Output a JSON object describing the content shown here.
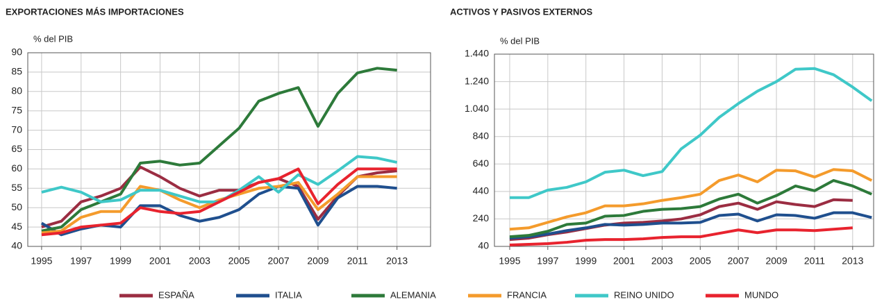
{
  "chart_data": [
    {
      "type": "line",
      "title": "EXPORTACIONES MÁS IMPORTACIONES",
      "y_label": "% del PIB",
      "x": [
        1995,
        1996,
        1997,
        1998,
        1999,
        2000,
        2001,
        2002,
        2003,
        2004,
        2005,
        2006,
        2007,
        2008,
        2009,
        2010,
        2011,
        2012,
        2013
      ],
      "xlim": [
        1994.3,
        2014.7
      ],
      "xticks": [
        1995,
        1997,
        1999,
        2001,
        2003,
        2005,
        2007,
        2009,
        2011,
        2013
      ],
      "ylim": [
        40,
        90
      ],
      "yticks": [
        40,
        45,
        50,
        55,
        60,
        65,
        70,
        75,
        80,
        85,
        90
      ],
      "grid": true,
      "series": [
        {
          "values": [
            45,
            46.5,
            51.5,
            53,
            55,
            60.5,
            58,
            55,
            53,
            54.5,
            54.5,
            56.5,
            57.5,
            55.5,
            47,
            53,
            58,
            59,
            59.5
          ]
        },
        {
          "values": [
            46,
            43,
            44.5,
            45.5,
            45,
            50.5,
            50.5,
            48,
            46.5,
            47.5,
            49.5,
            53.5,
            55.5,
            55,
            45.5,
            52.5,
            55.5,
            55.5,
            55
          ]
        },
        {
          "values": [
            44,
            45,
            49.5,
            51.5,
            53.5,
            61.5,
            62,
            61,
            61.5,
            66,
            70.5,
            77.5,
            79.5,
            81,
            71,
            79.5,
            84.8,
            86,
            85.5
          ]
        },
        {
          "values": [
            43.5,
            44,
            47.5,
            49,
            49,
            55.5,
            54.5,
            52,
            50,
            52,
            53.5,
            55,
            55.5,
            56.5,
            49.5,
            53.5,
            58,
            58,
            58
          ]
        },
        {
          "values": [
            54,
            55.3,
            54,
            51.5,
            52,
            54.5,
            54.5,
            53,
            51.5,
            51.5,
            54.5,
            58,
            54,
            58.5,
            56,
            59.5,
            63.2,
            62.8,
            61.7
          ]
        },
        {
          "values": [
            43,
            43.5,
            45,
            45.5,
            46,
            50,
            49,
            48.5,
            49,
            51.5,
            54,
            56.5,
            57.5,
            60,
            51,
            56,
            60,
            60,
            60
          ]
        }
      ]
    },
    {
      "type": "line",
      "title": "ACTIVOS Y PASIVOS EXTERNOS",
      "y_label": "% del PIB",
      "x": [
        1995,
        1996,
        1997,
        1998,
        1999,
        2000,
        2001,
        2002,
        2003,
        2004,
        2005,
        2006,
        2007,
        2008,
        2009,
        2010,
        2011,
        2012,
        2013,
        2014
      ],
      "xlim": [
        1994.2,
        2014.1
      ],
      "xticks": [
        1995,
        1997,
        1999,
        2001,
        2003,
        2005,
        2007,
        2009,
        2011,
        2013
      ],
      "ylim": [
        40,
        1440
      ],
      "yticks": [
        40,
        240,
        440,
        640,
        840,
        {
          "value": 1040,
          "label": "1.040"
        },
        {
          "value": 1240,
          "label": "1.240"
        },
        {
          "value": 1440,
          "label": "1.440"
        }
      ],
      "grid": true,
      "series": [
        {
          "values": [
            90,
            100,
            125,
            145,
            170,
            195,
            210,
            215,
            225,
            240,
            270,
            330,
            355,
            310,
            365,
            345,
            330,
            380,
            375,
            null
          ]
        },
        {
          "values": [
            100,
            110,
            130,
            155,
            175,
            200,
            195,
            200,
            210,
            210,
            215,
            265,
            275,
            225,
            270,
            265,
            245,
            285,
            285,
            250
          ]
        },
        {
          "values": [
            110,
            120,
            150,
            200,
            210,
            260,
            265,
            295,
            310,
            315,
            330,
            385,
            420,
            355,
            410,
            480,
            445,
            520,
            480,
            420
          ]
        },
        {
          "values": [
            165,
            175,
            215,
            255,
            285,
            335,
            335,
            350,
            375,
            395,
            420,
            520,
            560,
            510,
            595,
            590,
            545,
            600,
            590,
            520
          ]
        },
        {
          "values": [
            395,
            395,
            450,
            470,
            510,
            580,
            595,
            555,
            585,
            750,
            850,
            980,
            1080,
            1170,
            1240,
            1330,
            1335,
            1290,
            1200,
            1100
          ]
        },
        {
          "values": [
            50,
            55,
            60,
            70,
            85,
            90,
            90,
            95,
            105,
            110,
            110,
            135,
            160,
            140,
            160,
            160,
            155,
            165,
            175,
            null
          ]
        }
      ]
    }
  ],
  "legend": [
    {
      "name": "ESPAÑA",
      "color": "#9b2d42"
    },
    {
      "name": "ITALIA",
      "color": "#1f4f8e"
    },
    {
      "name": "ALEMANIA",
      "color": "#2d7a3a"
    },
    {
      "name": "FRANCIA",
      "color": "#f49b2c"
    },
    {
      "name": "REINO UNIDO",
      "color": "#3fc8c8"
    },
    {
      "name": "MUNDO",
      "color": "#e8232e"
    }
  ]
}
